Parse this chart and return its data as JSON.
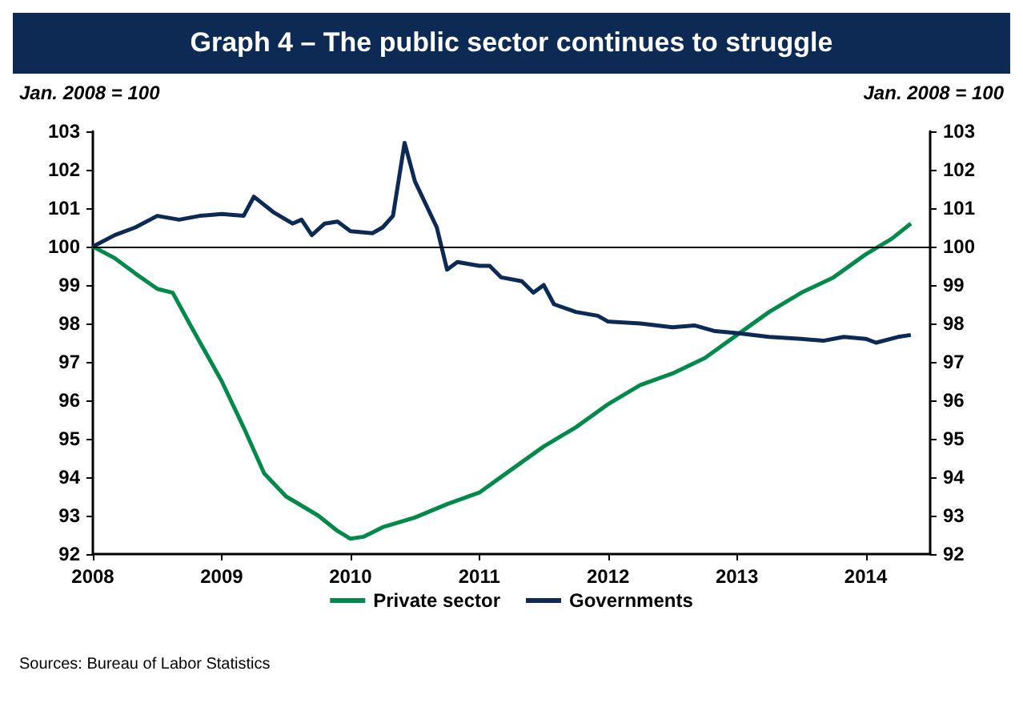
{
  "chart_data": {
    "type": "line",
    "title": "Graph 4 – The public sector continues to struggle",
    "ylabel": "Jan. 2008 = 100",
    "y2label": "Jan. 2008 = 100",
    "xlim": [
      2008,
      2014.5
    ],
    "xticks": [
      2008,
      2009,
      2010,
      2011,
      2012,
      2013,
      2014
    ],
    "ylim": [
      92,
      103
    ],
    "yticks": [
      92,
      93,
      94,
      95,
      96,
      97,
      98,
      99,
      100,
      101,
      102,
      103
    ],
    "y2lim": [
      92,
      103
    ],
    "y2ticks": [
      92,
      93,
      94,
      95,
      96,
      97,
      98,
      99,
      100,
      101,
      102,
      103
    ],
    "grid": false,
    "legend": "bottom",
    "marker": "none",
    "line_style": "solid",
    "ref_lines": [
      {
        "axis": "y",
        "value": 100,
        "label": null,
        "color": "#000000"
      }
    ],
    "series": [
      {
        "name": "Private sector",
        "color": "#00894a",
        "x": [
          2008.0,
          2008.17,
          2008.33,
          2008.5,
          2008.62,
          2008.75,
          2009.0,
          2009.17,
          2009.33,
          2009.5,
          2009.75,
          2009.9,
          2010.0,
          2010.1,
          2010.25,
          2010.5,
          2010.75,
          2011.0,
          2011.25,
          2011.5,
          2011.75,
          2012.0,
          2012.25,
          2012.5,
          2012.75,
          2013.0,
          2013.25,
          2013.5,
          2013.75,
          2014.0,
          2014.2,
          2014.35
        ],
        "values": [
          100,
          99.7,
          99.3,
          98.9,
          98.8,
          98.0,
          96.5,
          95.3,
          94.1,
          93.5,
          93.0,
          92.6,
          92.4,
          92.45,
          92.7,
          92.95,
          93.3,
          93.6,
          94.2,
          94.8,
          95.3,
          95.9,
          96.4,
          96.7,
          97.1,
          97.7,
          98.3,
          98.8,
          99.2,
          99.8,
          100.2,
          100.6
        ]
      },
      {
        "name": "Governments",
        "color": "#0d2a55",
        "x": [
          2008.0,
          2008.17,
          2008.33,
          2008.5,
          2008.67,
          2008.83,
          2009.0,
          2009.17,
          2009.25,
          2009.4,
          2009.55,
          2009.62,
          2009.7,
          2009.8,
          2009.9,
          2010.0,
          2010.17,
          2010.25,
          2010.33,
          2010.42,
          2010.5,
          2010.67,
          2010.75,
          2010.83,
          2011.0,
          2011.08,
          2011.17,
          2011.33,
          2011.42,
          2011.5,
          2011.58,
          2011.75,
          2011.92,
          2012.0,
          2012.25,
          2012.5,
          2012.67,
          2012.83,
          2013.0,
          2013.25,
          2013.5,
          2013.67,
          2013.83,
          2014.0,
          2014.08,
          2014.25,
          2014.35
        ],
        "values": [
          100,
          100.3,
          100.5,
          100.8,
          100.7,
          100.8,
          100.85,
          100.8,
          101.3,
          100.9,
          100.6,
          100.7,
          100.3,
          100.6,
          100.65,
          100.4,
          100.35,
          100.5,
          100.8,
          102.7,
          101.7,
          100.5,
          99.4,
          99.6,
          99.5,
          99.5,
          99.2,
          99.1,
          98.8,
          99.0,
          98.5,
          98.3,
          98.2,
          98.05,
          98.0,
          97.9,
          97.95,
          97.8,
          97.75,
          97.65,
          97.6,
          97.55,
          97.65,
          97.6,
          97.5,
          97.65,
          97.7
        ]
      }
    ],
    "annotations": [
      "Sources: Bureau of Labor Statistics"
    ]
  }
}
